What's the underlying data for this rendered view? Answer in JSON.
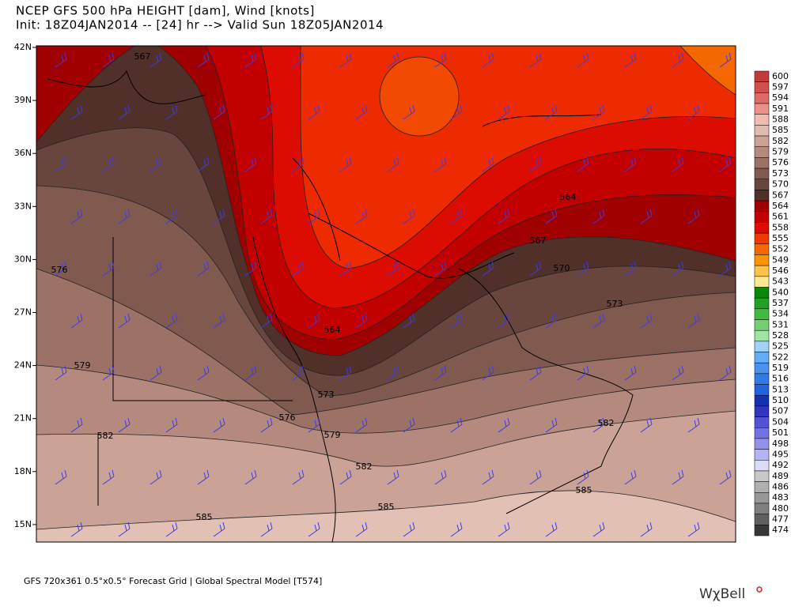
{
  "header": {
    "title": "NCEP GFS 500 hPa HEIGHT [dam], Wind [knots]",
    "subtitle": "Init: 18Z04JAN2014 -- [24] hr --> Valid Sun 18Z05JAN2014"
  },
  "map": {
    "lat_labels": [
      "42N",
      "39N",
      "36N",
      "33N",
      "30N",
      "27N",
      "24N",
      "21N",
      "18N",
      "15N"
    ],
    "contour_labels": [
      "567",
      "576",
      "579",
      "582",
      "585",
      "564",
      "573",
      "576",
      "579",
      "582",
      "585",
      "564",
      "567",
      "570",
      "573",
      "582",
      "585"
    ]
  },
  "colorbar": [
    {
      "value": 600,
      "color": "#c23a3c"
    },
    {
      "value": 597,
      "color": "#d24f4f"
    },
    {
      "value": 594,
      "color": "#e06a69"
    },
    {
      "value": 591,
      "color": "#ec908c"
    },
    {
      "value": 588,
      "color": "#f0bcb2"
    },
    {
      "value": 585,
      "color": "#dfbcb0"
    },
    {
      "value": 582,
      "color": "#cba296"
    },
    {
      "value": 579,
      "color": "#b48a7e"
    },
    {
      "value": 576,
      "color": "#9c7266"
    },
    {
      "value": 573,
      "color": "#80594f"
    },
    {
      "value": 570,
      "color": "#68463d"
    },
    {
      "value": 567,
      "color": "#503029"
    },
    {
      "value": 564,
      "color": "#a00000"
    },
    {
      "value": 561,
      "color": "#c20000"
    },
    {
      "value": 558,
      "color": "#dc0d00"
    },
    {
      "value": 555,
      "color": "#ee3a00"
    },
    {
      "value": 552,
      "color": "#f56800"
    },
    {
      "value": 549,
      "color": "#fb9400"
    },
    {
      "value": 546,
      "color": "#ffc34a"
    },
    {
      "value": 543,
      "color": "#ffe892"
    },
    {
      "value": 540,
      "color": "#0a880a"
    },
    {
      "value": 537,
      "color": "#22a022"
    },
    {
      "value": 534,
      "color": "#42ba42"
    },
    {
      "value": 531,
      "color": "#72d072"
    },
    {
      "value": 528,
      "color": "#a2e2a2"
    },
    {
      "value": 525,
      "color": "#9ed2f8"
    },
    {
      "value": 522,
      "color": "#64acf6"
    },
    {
      "value": 519,
      "color": "#4a92f0"
    },
    {
      "value": 516,
      "color": "#327ae6"
    },
    {
      "value": 513,
      "color": "#2262dc"
    },
    {
      "value": 510,
      "color": "#1232b0"
    },
    {
      "value": 507,
      "color": "#3434c2"
    },
    {
      "value": 504,
      "color": "#5252d2"
    },
    {
      "value": 501,
      "color": "#7272e0"
    },
    {
      "value": 498,
      "color": "#9292ea"
    },
    {
      "value": 495,
      "color": "#b4b4f2"
    },
    {
      "value": 492,
      "color": "#dcdcf8"
    },
    {
      "value": 489,
      "color": "#c8c8c8"
    },
    {
      "value": 486,
      "color": "#b0b0b0"
    },
    {
      "value": 483,
      "color": "#989898"
    },
    {
      "value": 480,
      "color": "#808080"
    },
    {
      "value": 477,
      "color": "#606060"
    },
    {
      "value": 474,
      "color": "#383838"
    }
  ],
  "footer": {
    "grid_info": "GFS 720x361 0.5°x0.5° Forecast Grid | Global Spectral Model [T574]",
    "logo": "WχBell"
  }
}
